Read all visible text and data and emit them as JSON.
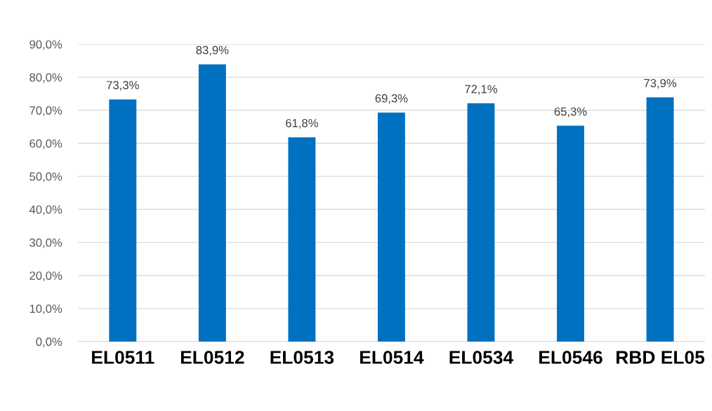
{
  "chart_data": {
    "type": "bar",
    "categories": [
      "EL0511",
      "EL0512",
      "EL0513",
      "EL0514",
      "EL0534",
      "EL0546",
      "RBD EL05"
    ],
    "values": [
      73.3,
      83.9,
      61.8,
      69.3,
      72.1,
      65.3,
      73.9
    ],
    "color": "#0070c0",
    "value_labels": [
      "73,3%",
      "83,9%",
      "61,8%",
      "69,3%",
      "72,1%",
      "65,3%",
      "73,9%"
    ],
    "ylim": [
      0,
      90
    ],
    "yticks": [
      {
        "value": 0,
        "label": "0,0%"
      },
      {
        "value": 10,
        "label": "10,0%"
      },
      {
        "value": 20,
        "label": "20,0%"
      },
      {
        "value": 30,
        "label": "30,0%"
      },
      {
        "value": 40,
        "label": "40,0%"
      },
      {
        "value": 50,
        "label": "50,0%"
      },
      {
        "value": 60,
        "label": "60,0%"
      },
      {
        "value": 70,
        "label": "70,0%"
      },
      {
        "value": 80,
        "label": "80,0%"
      },
      {
        "value": 90,
        "label": "90,0%"
      }
    ],
    "grid": "y"
  }
}
